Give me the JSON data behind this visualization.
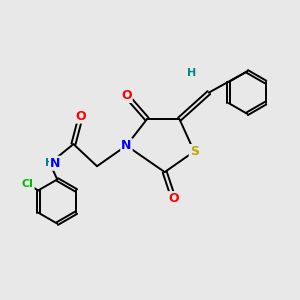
{
  "background_color": "#e8e8e8",
  "atom_colors": {
    "O": "#ff0000",
    "N": "#0000ff",
    "S": "#bbaa00",
    "Cl": "#00bb00",
    "C": "#000000",
    "H": "#008888"
  },
  "bond_color": "#000000",
  "bond_width": 1.4,
  "fig_width": 3.0,
  "fig_height": 3.0,
  "dpi": 100
}
